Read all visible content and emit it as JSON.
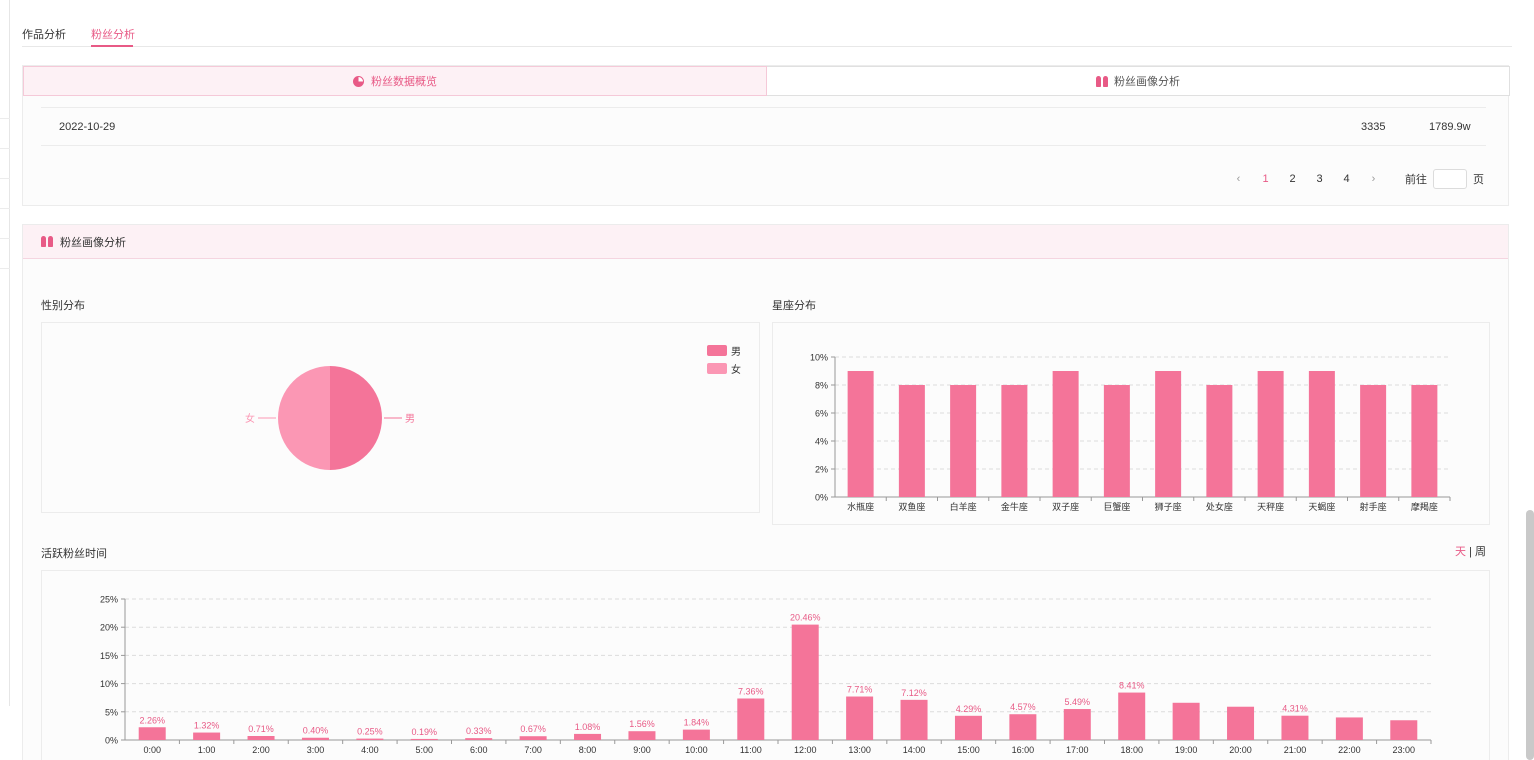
{
  "tabs": [
    {
      "label": "作品分析",
      "active": false
    },
    {
      "label": "粉丝分析",
      "active": true
    }
  ],
  "subtabs": [
    {
      "label": "粉丝数据概览",
      "icon": "pie-chart-icon",
      "active": true
    },
    {
      "label": "粉丝画像分析",
      "icon": "people-icon",
      "active": false
    }
  ],
  "table_row": {
    "date": "2022-10-29",
    "value1": "3335",
    "value2": "1789.9w"
  },
  "pagination": {
    "pages": [
      "1",
      "2",
      "3",
      "4"
    ],
    "current": "1",
    "goto_label": "前往",
    "page_suffix": "页",
    "goto_value": ""
  },
  "portrait_section": {
    "title": "粉丝画像分析",
    "icon": "people-icon"
  },
  "toggle": {
    "day": "天",
    "separator": "|",
    "week": "周"
  },
  "colors": {
    "accent": "#e85a86",
    "bar": "#f47499",
    "male": "#f47499",
    "female": "#fb97b4",
    "header_bg": "#fdf1f5"
  },
  "chart_data": [
    {
      "type": "pie",
      "title": "性别分布",
      "legend_position": "top-right",
      "slices": [
        {
          "name": "男",
          "value": 50
        },
        {
          "name": "女",
          "value": 50
        }
      ]
    },
    {
      "type": "bar",
      "title": "星座分布",
      "categories": [
        "水瓶座",
        "双鱼座",
        "白羊座",
        "金牛座",
        "双子座",
        "巨蟹座",
        "狮子座",
        "处女座",
        "天秤座",
        "天蝎座",
        "射手座",
        "摩羯座"
      ],
      "values": [
        9,
        8,
        8,
        8,
        9,
        8,
        9,
        8,
        9,
        9,
        8,
        8
      ],
      "yticks": [
        "0%",
        "2%",
        "4%",
        "6%",
        "8%",
        "10%"
      ],
      "ylim": [
        0,
        10
      ],
      "grid": true
    },
    {
      "type": "bar",
      "title": "活跃粉丝时间",
      "categories": [
        "0:00",
        "1:00",
        "2:00",
        "3:00",
        "4:00",
        "5:00",
        "6:00",
        "7:00",
        "8:00",
        "9:00",
        "10:00",
        "11:00",
        "12:00",
        "13:00",
        "14:00",
        "15:00",
        "16:00",
        "17:00",
        "18:00",
        "19:00",
        "20:00",
        "21:00",
        "22:00",
        "23:00"
      ],
      "values": [
        2.26,
        1.32,
        0.71,
        0.4,
        0.25,
        0.19,
        0.33,
        0.67,
        1.08,
        1.56,
        1.84,
        7.36,
        20.46,
        7.71,
        7.12,
        4.29,
        4.57,
        5.49,
        8.41,
        6.6,
        5.9,
        4.31,
        4.0,
        3.5
      ],
      "data_labels": [
        "2.26%",
        "1.32%",
        "0.71%",
        "0.40%",
        "0.25%",
        "0.19%",
        "0.33%",
        "0.67%",
        "1.08%",
        "1.56%",
        "1.84%",
        "7.36%",
        "20.46%",
        "7.71%",
        "7.12%",
        "4.29%",
        "4.57%",
        "5.49%",
        "8.41%",
        "",
        "",
        "4.31%",
        "",
        ""
      ],
      "yticks": [
        "0%",
        "5%",
        "10%",
        "15%",
        "20%",
        "25%"
      ],
      "ylim": [
        0,
        25
      ],
      "grid": true
    }
  ]
}
